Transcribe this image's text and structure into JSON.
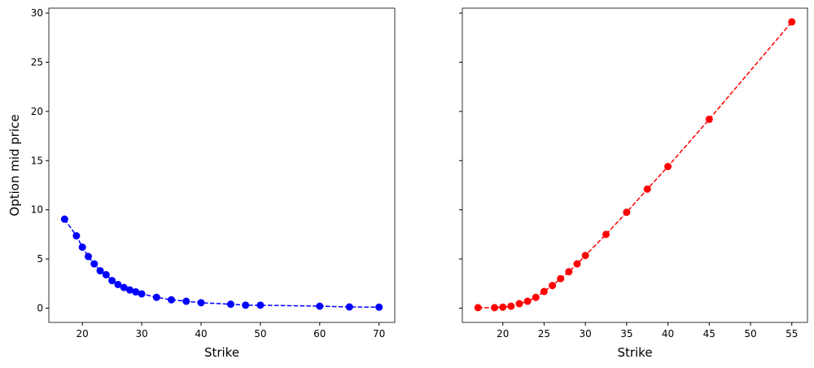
{
  "chart_data": [
    {
      "type": "line",
      "xlabel": "Strike",
      "ylabel": "Option mid price",
      "series": [
        {
          "color": "#0000ff",
          "linestyle": "dashed",
          "marker": "circle",
          "x": [
            17,
            19,
            20,
            21,
            22,
            23,
            24,
            25,
            26,
            27,
            28,
            29,
            30,
            32.5,
            35,
            37.5,
            40,
            45,
            47.5,
            50,
            60,
            65,
            70
          ],
          "values": [
            9.05,
            7.35,
            6.2,
            5.25,
            4.5,
            3.8,
            3.4,
            2.8,
            2.4,
            2.1,
            1.85,
            1.65,
            1.45,
            1.1,
            0.85,
            0.7,
            0.55,
            0.4,
            0.3,
            0.3,
            0.2,
            0.12,
            0.1
          ]
        }
      ],
      "xlim": [
        14.35,
        72.65
      ],
      "xticks": [
        20,
        30,
        40,
        50,
        60,
        70
      ],
      "ylim": [
        -1.45,
        30.5
      ],
      "yticks": [
        0,
        5,
        10,
        15,
        20,
        25,
        30
      ],
      "ytick_labels": true
    },
    {
      "type": "line",
      "xlabel": "Strike",
      "series": [
        {
          "color": "#ff0000",
          "linestyle": "dashed",
          "marker": "circle",
          "x": [
            17,
            19,
            20,
            21,
            22,
            23,
            24,
            25,
            26,
            27,
            28,
            29,
            30,
            32.5,
            35,
            37.5,
            40,
            45,
            55
          ],
          "values": [
            0.05,
            0.05,
            0.1,
            0.2,
            0.45,
            0.7,
            1.1,
            1.7,
            2.3,
            3.0,
            3.7,
            4.5,
            5.35,
            7.5,
            9.75,
            12.1,
            14.4,
            19.2,
            29.1
          ]
        }
      ],
      "xlim": [
        15.1,
        56.9
      ],
      "xticks": [
        20,
        25,
        30,
        35,
        40,
        45,
        50,
        55
      ],
      "ylim": [
        -1.45,
        30.5
      ],
      "yticks": [
        0,
        5,
        10,
        15,
        20,
        25,
        30
      ],
      "ytick_labels": false
    }
  ]
}
